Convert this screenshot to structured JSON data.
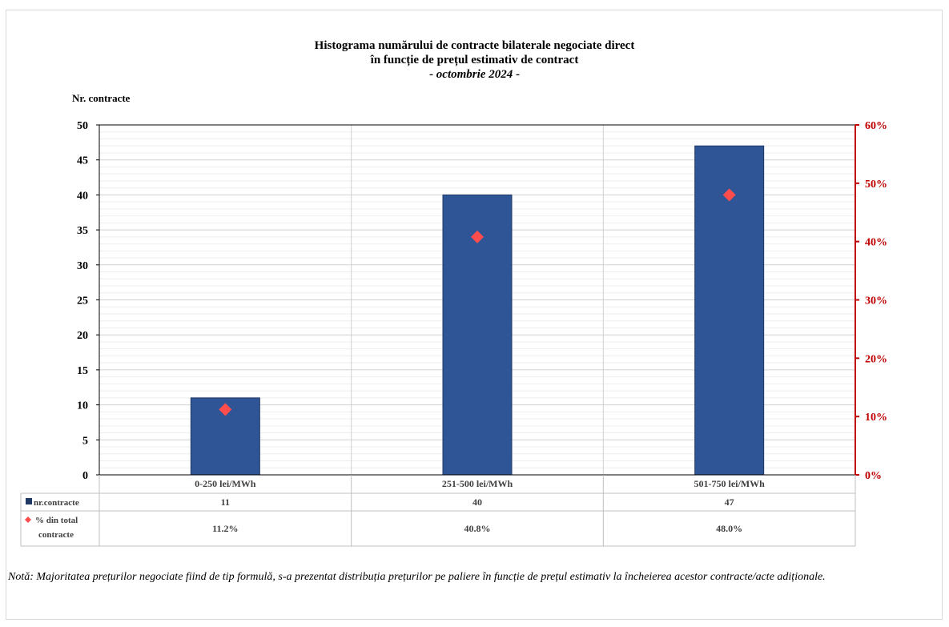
{
  "chart_data": {
    "type": "bar",
    "title_line1": "Histograma numărului de contracte bilaterale negociate direct",
    "title_line2": "în funcție de prețul estimativ de contract",
    "title_prefix": "- ",
    "title_period": "octombrie 2024",
    "title_suffix": "  -",
    "ylabel": "Nr. contracte",
    "categories": [
      "0-250 lei/MWh",
      "251-500 lei/MWh",
      "501-750 lei/MWh"
    ],
    "series": [
      {
        "name": "nr.contracte",
        "values": [
          11,
          40,
          47
        ],
        "labels": [
          "11",
          "40",
          "47"
        ],
        "color": "#2f5597",
        "axis": "left"
      },
      {
        "name": "% din total contracte",
        "values": [
          11.2,
          40.8,
          48.0
        ],
        "labels": [
          "11.2%",
          "40.8%",
          "48.0%"
        ],
        "color": "#ff4d4d",
        "axis": "right",
        "marker": "diamond"
      }
    ],
    "ylim": [
      0,
      50
    ],
    "yticks": [
      "0",
      "5",
      "10",
      "15",
      "20",
      "25",
      "30",
      "35",
      "40",
      "45",
      "50"
    ],
    "y2lim": [
      0,
      60
    ],
    "y2ticks": [
      "0%",
      "10%",
      "20%",
      "30%",
      "40%",
      "50%",
      "60%"
    ],
    "y2_color": "#c00000",
    "legend_placement": "data-table",
    "grid": true
  },
  "table": {
    "row1_label": "nr.contracte",
    "row2_label_line1": "% din total",
    "row2_label_line2": "contracte"
  },
  "note": "Notă: Majoritatea prețurilor negociate fiind de tip formulă, s-a prezentat distribuția prețurilor pe paliere în funcție de prețul estimativ la încheierea acestor contracte/acte adiționale."
}
